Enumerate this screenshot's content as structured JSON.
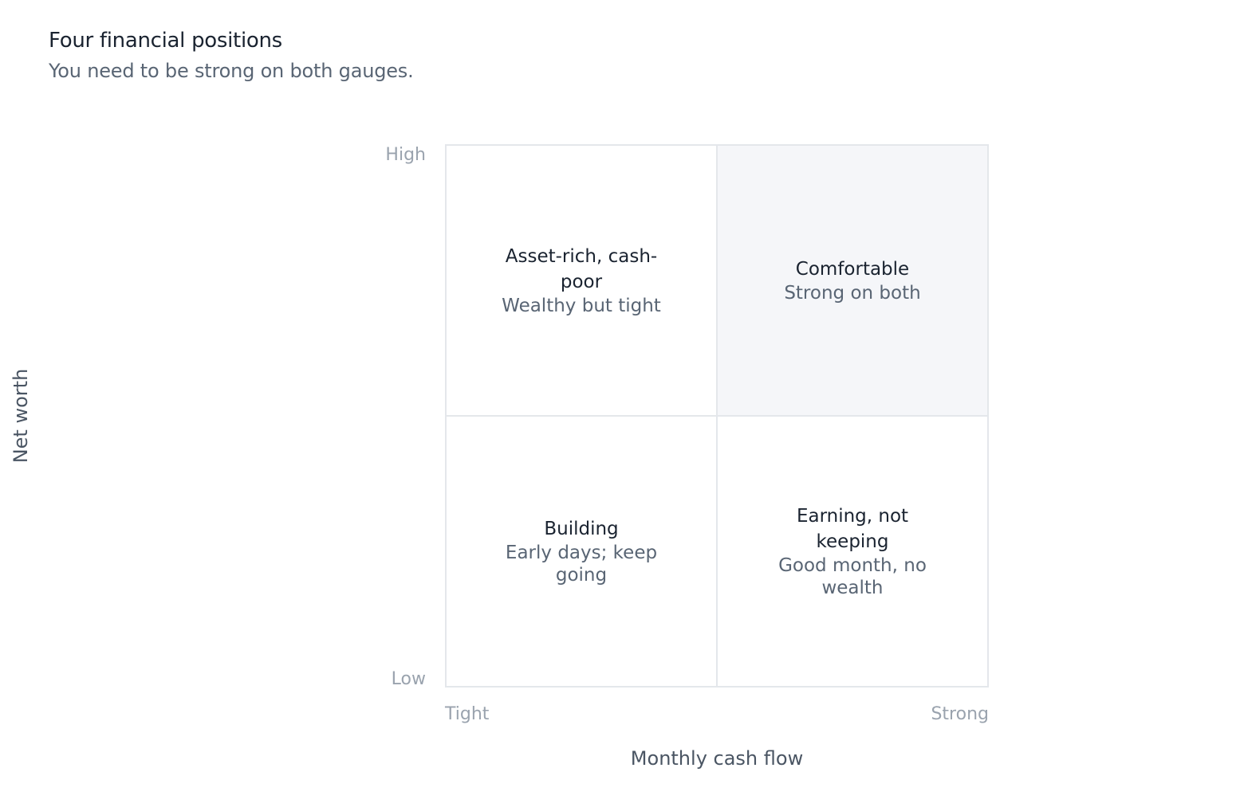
{
  "header": {
    "title": "Four financial positions",
    "subtitle": "You need to be strong on both gauges."
  },
  "axes": {
    "x_label": "Monthly cash flow",
    "x_min_label": "Tight",
    "x_max_label": "Strong",
    "y_label": "Net worth",
    "y_min_label": "Low",
    "y_max_label": "High"
  },
  "quadrants": {
    "top_left": {
      "title": "Asset-rich, cash-poor",
      "desc": "Wealthy but tight"
    },
    "top_right": {
      "title": "Comfortable",
      "desc": "Strong on both"
    },
    "bottom_left": {
      "title": "Building",
      "desc": "Early days; keep going"
    },
    "bottom_right": {
      "title": "Earning, not keeping",
      "desc": "Good month, no wealth"
    }
  },
  "colors": {
    "highlight_quadrant": "#f5f6f9",
    "grid_line": "#e4e7eb"
  }
}
